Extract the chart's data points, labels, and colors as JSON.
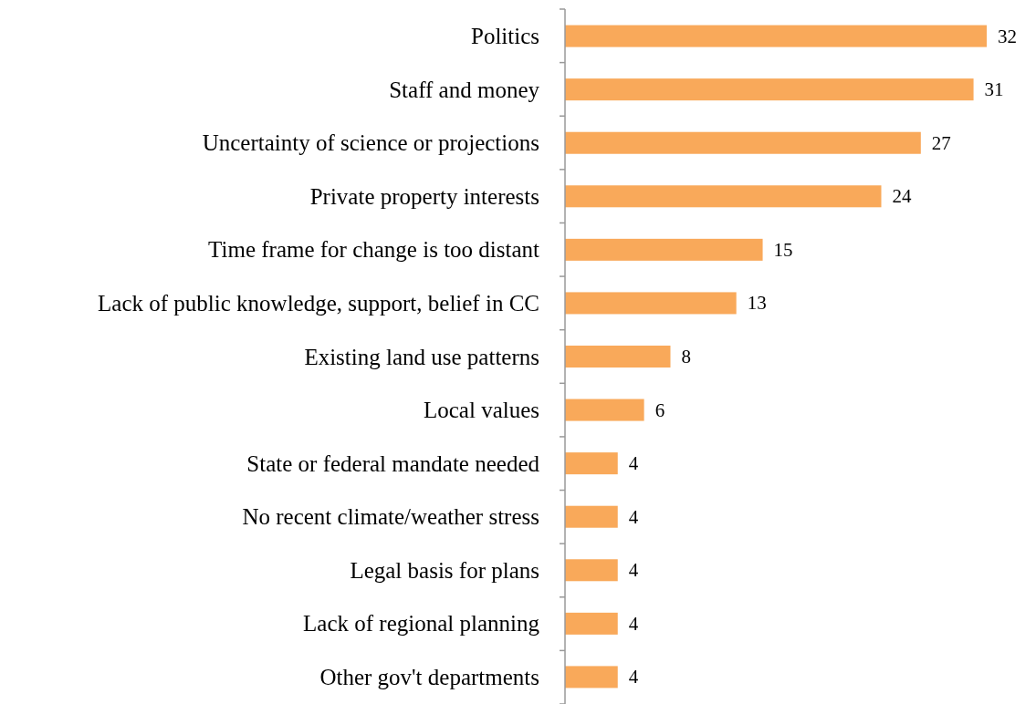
{
  "chart_data": {
    "type": "bar",
    "orientation": "horizontal",
    "categories": [
      "Politics",
      "Staff and money",
      "Uncertainty of science or projections",
      "Private property interests",
      "Time frame for change is too distant",
      "Lack of public knowledge, support, belief in CC",
      "Existing land use patterns",
      "Local values",
      "State or federal mandate needed",
      "No recent climate/weather stress",
      "Legal basis for plans",
      "Lack of regional planning",
      "Other gov't departments"
    ],
    "values": [
      32,
      31,
      27,
      24,
      15,
      13,
      8,
      6,
      4,
      4,
      4,
      4,
      4
    ],
    "color": "#f9a95a",
    "data_labels": true
  }
}
